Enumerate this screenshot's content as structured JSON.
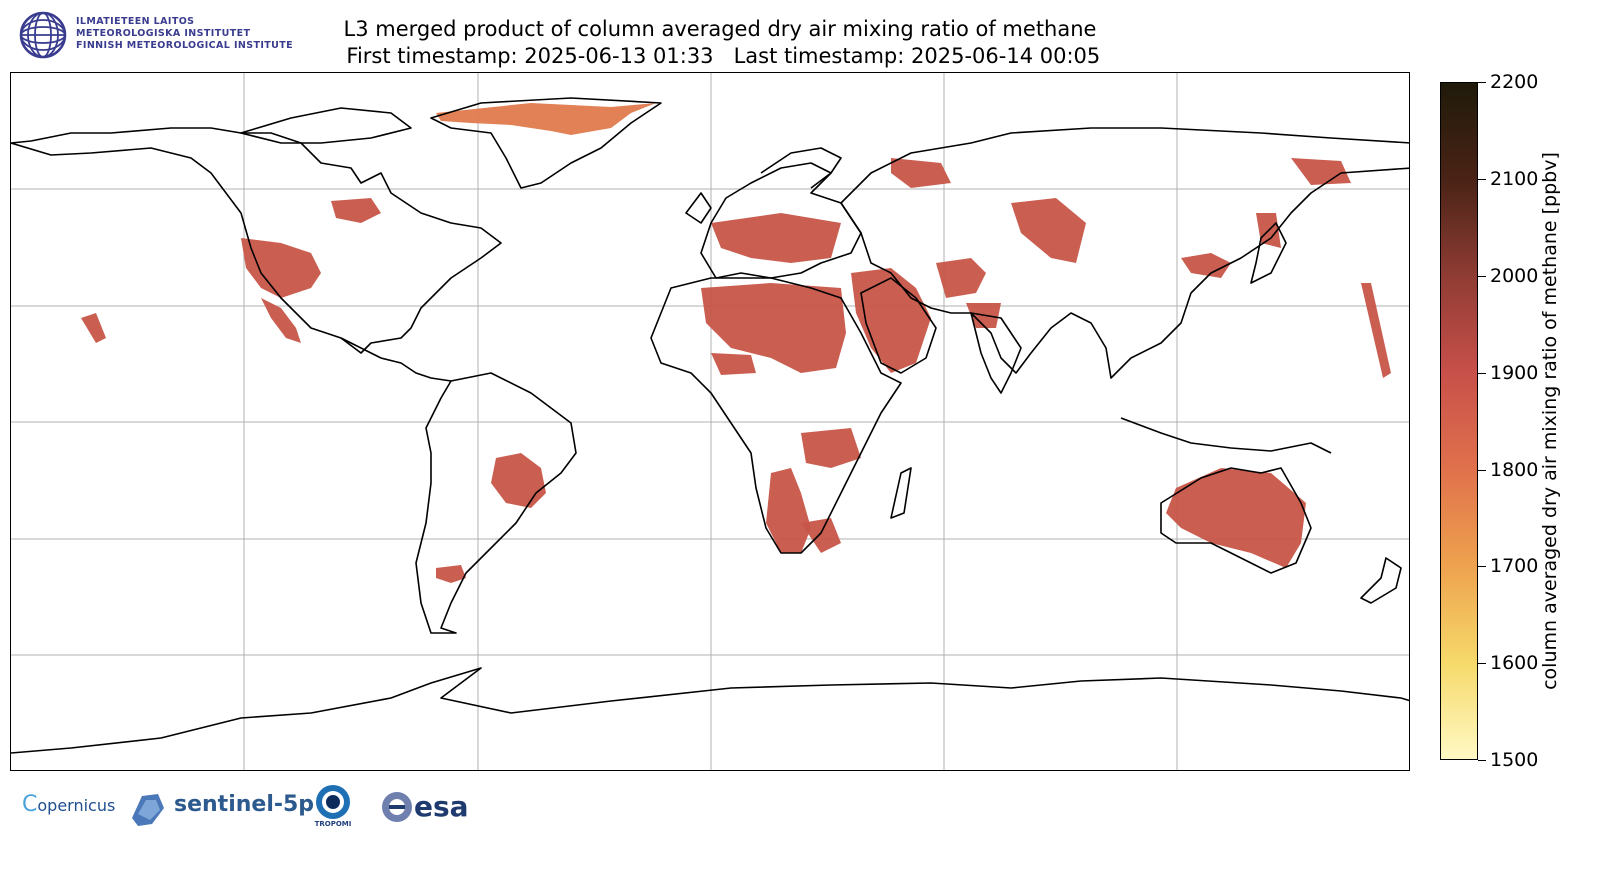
{
  "institute": {
    "lines": [
      "ILMATIETEEN LAITOS",
      "METEOROLOGISKA INSTITUTET",
      "FINNISH METEOROLOGICAL INSTITUTE"
    ],
    "color": "#3a3c8f"
  },
  "title": {
    "line1": "L3 merged product of column averaged dry air mixing ratio of methane",
    "line2": " First timestamp: 2025-06-13 01:33   Last timestamp: 2025-06-14 00:05"
  },
  "colorbar": {
    "label": "column averaged dry air mixing ratio of methane [ppbv]",
    "min": 1500,
    "max": 2200,
    "ticks": [
      "1500",
      "1600",
      "1700",
      "1800",
      "1900",
      "2000",
      "2100",
      "2200"
    ],
    "colors": [
      "#fff9c4",
      "#f6d96a",
      "#eea24e",
      "#e0714c",
      "#c8504a",
      "#8f3c34",
      "#4a2316",
      "#1f1a0a"
    ]
  },
  "map": {
    "projection": "plate carree",
    "grid": true,
    "coastline_color": "#000000",
    "data_color": "#c75548",
    "greenland_color": "#e07a4c"
  },
  "partners": {
    "copernicus": "opernicus",
    "sentinel": "sentinel-5p",
    "tropomi": "TROPOMI",
    "esa": "esa"
  }
}
